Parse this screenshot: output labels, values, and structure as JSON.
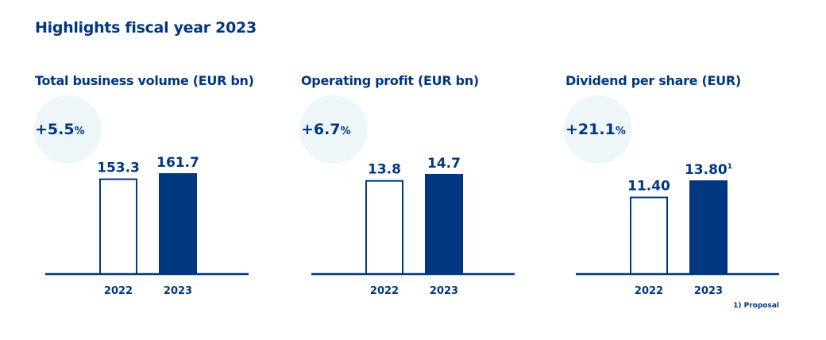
{
  "page": {
    "title": "Highlights fiscal year 2023",
    "footnote": "1) Proposal"
  },
  "colors": {
    "navy": "#003781",
    "circle": "#eff6f9",
    "bar_outline_fill": "#ffffff"
  },
  "chart_data": [
    {
      "type": "bar",
      "title": "Total business volume (EUR bn)",
      "change": "+5.5",
      "change_unit": "%",
      "categories": [
        "2022",
        "2023"
      ],
      "values": [
        153.3,
        161.7
      ],
      "labels": [
        "153.3",
        "161.7"
      ],
      "label_superscripts": [
        "",
        ""
      ],
      "styles": [
        "outline",
        "filled"
      ],
      "xlabel": "",
      "ylabel": "",
      "ylim": [
        0,
        161.7
      ]
    },
    {
      "type": "bar",
      "title": "Operating profit (EUR bn)",
      "change": "+6.7",
      "change_unit": "%",
      "categories": [
        "2022",
        "2023"
      ],
      "values": [
        13.8,
        14.7
      ],
      "labels": [
        "13.8",
        "14.7"
      ],
      "label_superscripts": [
        "",
        ""
      ],
      "styles": [
        "outline",
        "filled"
      ],
      "xlabel": "",
      "ylabel": "",
      "ylim": [
        0,
        14.7
      ]
    },
    {
      "type": "bar",
      "title": "Dividend per share (EUR)",
      "change": "+21.1",
      "change_unit": "%",
      "categories": [
        "2022",
        "2023"
      ],
      "values": [
        11.4,
        13.8
      ],
      "labels": [
        "11.40",
        "13.80"
      ],
      "label_superscripts": [
        "",
        "1"
      ],
      "styles": [
        "outline",
        "filled"
      ],
      "xlabel": "",
      "ylabel": "",
      "ylim": [
        0,
        13.8
      ]
    }
  ]
}
